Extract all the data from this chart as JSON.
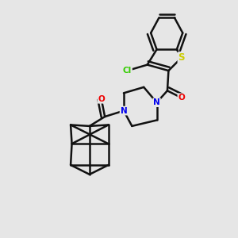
{
  "background_color": "#e6e6e6",
  "atoms": {
    "S": {
      "color": "#cccc00"
    },
    "Cl": {
      "color": "#33cc00"
    },
    "N": {
      "color": "#0000ee"
    },
    "O": {
      "color": "#ee0000"
    }
  },
  "bond_color": "#111111",
  "bond_width": 1.8
}
